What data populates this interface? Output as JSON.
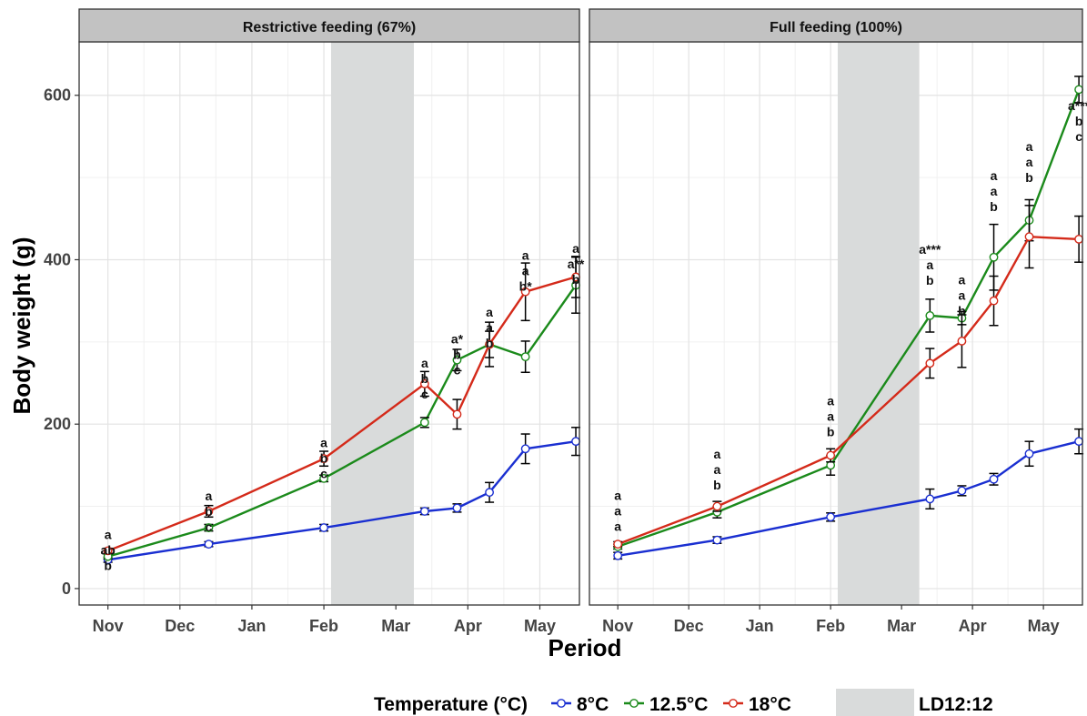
{
  "chart_data": {
    "type": "line",
    "ylabel": "Body weight (g)",
    "xlabel": "Period",
    "ylim": [
      -20,
      665
    ],
    "y_ticks": [
      0,
      200,
      400,
      600
    ],
    "x_ticks": [
      {
        "label": "Nov",
        "x": 0
      },
      {
        "label": "Dec",
        "x": 1
      },
      {
        "label": "Jan",
        "x": 2
      },
      {
        "label": "Feb",
        "x": 3
      },
      {
        "label": "Mar",
        "x": 4
      },
      {
        "label": "Apr",
        "x": 5
      },
      {
        "label": "May",
        "x": 6
      }
    ],
    "grid": true,
    "legend": {
      "title": "Temperature (°C)",
      "position": "bottom",
      "shade_label": "LD12:12"
    },
    "series_colors": {
      "8C": "#1a2fd1",
      "12.5C": "#1b8a1b",
      "18C": "#d42a1a"
    },
    "panels": [
      {
        "title": "Restrictive feeding (67%)",
        "xlim": [
          -0.4,
          6.55
        ],
        "shade": [
          3.1,
          4.25
        ],
        "series": [
          {
            "name": "8°C",
            "key": "8C",
            "points": [
              {
                "x": 0.0,
                "y": 35,
                "err": 3
              },
              {
                "x": 1.4,
                "y": 54,
                "err": 3
              },
              {
                "x": 3.0,
                "y": 74,
                "err": 4
              },
              {
                "x": 4.4,
                "y": 94,
                "err": 4
              },
              {
                "x": 4.85,
                "y": 98,
                "err": 5
              },
              {
                "x": 5.3,
                "y": 117,
                "err": 12
              },
              {
                "x": 5.8,
                "y": 170,
                "err": 18
              },
              {
                "x": 6.5,
                "y": 179,
                "err": 17
              }
            ]
          },
          {
            "name": "12.5°C",
            "key": "12.5C",
            "points": [
              {
                "x": 0.0,
                "y": 39,
                "err": 3
              },
              {
                "x": 1.4,
                "y": 74,
                "err": 4
              },
              {
                "x": 3.0,
                "y": 134,
                "err": 4
              },
              {
                "x": 4.4,
                "y": 202,
                "err": 6
              },
              {
                "x": 4.85,
                "y": 278,
                "err": 13
              },
              {
                "x": 5.3,
                "y": 297,
                "err": 16
              },
              {
                "x": 5.8,
                "y": 282,
                "err": 19
              },
              {
                "x": 6.5,
                "y": 369,
                "err": 34
              }
            ]
          },
          {
            "name": "18°C",
            "key": "18C",
            "points": [
              {
                "x": 0.0,
                "y": 46,
                "err": 3
              },
              {
                "x": 1.4,
                "y": 94,
                "err": 7
              },
              {
                "x": 3.0,
                "y": 158,
                "err": 9
              },
              {
                "x": 4.4,
                "y": 249,
                "err": 15
              },
              {
                "x": 4.85,
                "y": 212,
                "err": 18
              },
              {
                "x": 5.3,
                "y": 297,
                "err": 27
              },
              {
                "x": 5.8,
                "y": 361,
                "err": 35
              },
              {
                "x": 6.5,
                "y": 379,
                "err": 25
              }
            ]
          }
        ],
        "annotations": [
          {
            "x": 0.0,
            "y_top": 60,
            "lines": [
              "a",
              "ab",
              "b"
            ]
          },
          {
            "x": 1.4,
            "y_top": 107,
            "lines": [
              "a",
              "b",
              "c"
            ]
          },
          {
            "x": 3.0,
            "y_top": 172,
            "lines": [
              "a",
              "b",
              "c"
            ]
          },
          {
            "x": 4.4,
            "y_top": 269,
            "lines": [
              "a",
              "b",
              "c"
            ]
          },
          {
            "x": 4.85,
            "y_top": 298,
            "lines": [
              "a*",
              "b",
              "c"
            ]
          },
          {
            "x": 5.3,
            "y_top": 331,
            "lines": [
              "a",
              "a",
              "b"
            ]
          },
          {
            "x": 5.8,
            "y_top": 400,
            "lines": [
              "a",
              "a",
              "b*"
            ]
          },
          {
            "x": 6.5,
            "y_top": 408,
            "lines": [
              "a",
              "a**",
              "b"
            ]
          }
        ]
      },
      {
        "title": "Full feeding (100%)",
        "xlim": [
          -0.4,
          6.55
        ],
        "shade": [
          3.1,
          4.25
        ],
        "series": [
          {
            "name": "8°C",
            "key": "8C",
            "points": [
              {
                "x": 0.0,
                "y": 40,
                "err": 4
              },
              {
                "x": 1.4,
                "y": 59,
                "err": 4
              },
              {
                "x": 3.0,
                "y": 87,
                "err": 5
              },
              {
                "x": 4.4,
                "y": 109,
                "err": 12
              },
              {
                "x": 4.85,
                "y": 119,
                "err": 6
              },
              {
                "x": 5.3,
                "y": 133,
                "err": 7
              },
              {
                "x": 5.8,
                "y": 164,
                "err": 15
              },
              {
                "x": 6.5,
                "y": 179,
                "err": 15
              }
            ]
          },
          {
            "name": "12.5°C",
            "key": "12.5C",
            "points": [
              {
                "x": 0.0,
                "y": 51,
                "err": 3
              },
              {
                "x": 1.4,
                "y": 93,
                "err": 7
              },
              {
                "x": 3.0,
                "y": 150,
                "err": 12
              },
              {
                "x": 4.4,
                "y": 332,
                "err": 20
              },
              {
                "x": 4.85,
                "y": 329,
                "err": 8
              },
              {
                "x": 5.3,
                "y": 403,
                "err": 40
              },
              {
                "x": 5.8,
                "y": 448,
                "err": 25
              },
              {
                "x": 6.5,
                "y": 607,
                "err": 16
              }
            ]
          },
          {
            "name": "18°C",
            "key": "18C",
            "points": [
              {
                "x": 0.0,
                "y": 54,
                "err": 3
              },
              {
                "x": 1.4,
                "y": 100,
                "err": 6
              },
              {
                "x": 3.0,
                "y": 162,
                "err": 8
              },
              {
                "x": 4.4,
                "y": 274,
                "err": 18
              },
              {
                "x": 4.85,
                "y": 301,
                "err": 32
              },
              {
                "x": 5.3,
                "y": 350,
                "err": 30
              },
              {
                "x": 5.8,
                "y": 428,
                "err": 38
              },
              {
                "x": 6.5,
                "y": 425,
                "err": 28
              }
            ]
          }
        ],
        "annotations": [
          {
            "x": 0.0,
            "y_top": 108,
            "lines": [
              "a",
              "a",
              "a"
            ]
          },
          {
            "x": 1.4,
            "y_top": 158,
            "lines": [
              "a",
              "a",
              "b"
            ]
          },
          {
            "x": 3.0,
            "y_top": 223,
            "lines": [
              "a",
              "a",
              "b"
            ]
          },
          {
            "x": 4.4,
            "y_top": 407,
            "lines": [
              "a***",
              "a",
              "b"
            ]
          },
          {
            "x": 4.85,
            "y_top": 370,
            "lines": [
              "a",
              "a",
              "b"
            ]
          },
          {
            "x": 5.3,
            "y_top": 497,
            "lines": [
              "a",
              "a",
              "b"
            ]
          },
          {
            "x": 5.8,
            "y_top": 532,
            "lines": [
              "a",
              "a",
              "b"
            ]
          },
          {
            "x": 6.5,
            "y_top": 582,
            "lines": [
              "a***",
              "b",
              "c"
            ]
          }
        ]
      }
    ]
  }
}
